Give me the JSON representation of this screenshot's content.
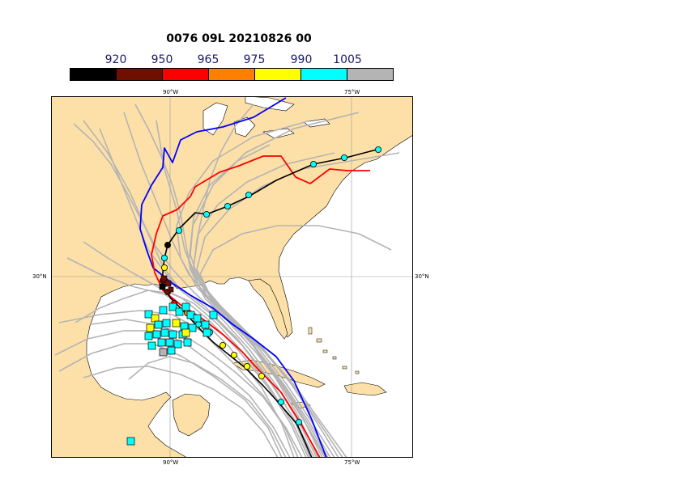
{
  "title": "0076 09L 20210826 00",
  "colorbar": {
    "labels": [
      "920",
      "950",
      "965",
      "975",
      "990",
      "1005"
    ],
    "colors": [
      "#000000",
      "#6e0f00",
      "#ff0000",
      "#ff8000",
      "#ffff00",
      "#00ffff",
      "#b4b4b4"
    ]
  },
  "axes": {
    "lon_top": [
      "90°W",
      "75°W"
    ],
    "lon_bottom": [
      "90°W",
      "75°W"
    ],
    "lat_left": "30°N",
    "lat_right": "30°N"
  },
  "colors": {
    "land": "#fde0a8",
    "ocean": "#ffffff",
    "ensemble_track": "#b4b4b4",
    "track_black": "#000000",
    "track_red": "#ff0000",
    "track_blue": "#0000ff",
    "grid": "#9a9a9a"
  }
}
